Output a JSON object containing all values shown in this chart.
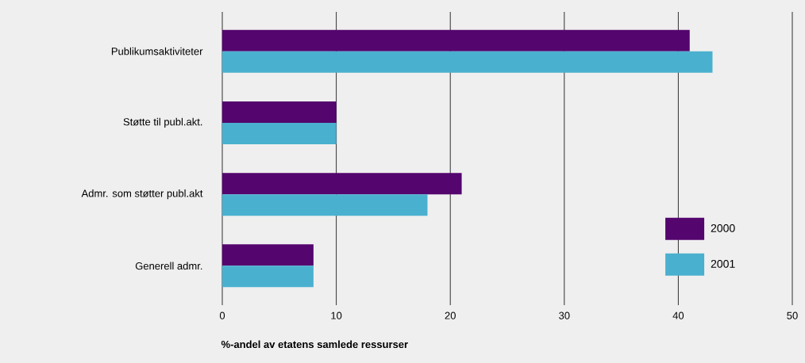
{
  "chart_data": {
    "type": "bar",
    "orientation": "horizontal",
    "xlabel": "%-andel av etatens samlede ressurser",
    "categories": [
      "Publikumsaktiviteter",
      "Støtte til publ.akt.",
      "Admr. som støtter publ.akt",
      "Generell admr."
    ],
    "series": [
      {
        "name": "2000",
        "color": "#54056e",
        "values": [
          41,
          10,
          21,
          8
        ]
      },
      {
        "name": "2001",
        "color": "#4ab0cf",
        "values": [
          43,
          10,
          18,
          8
        ]
      }
    ],
    "xlim": [
      0,
      50
    ],
    "xticks": [
      0,
      10,
      20,
      30,
      40,
      50
    ],
    "grid": "x",
    "legend": "bottom right"
  }
}
